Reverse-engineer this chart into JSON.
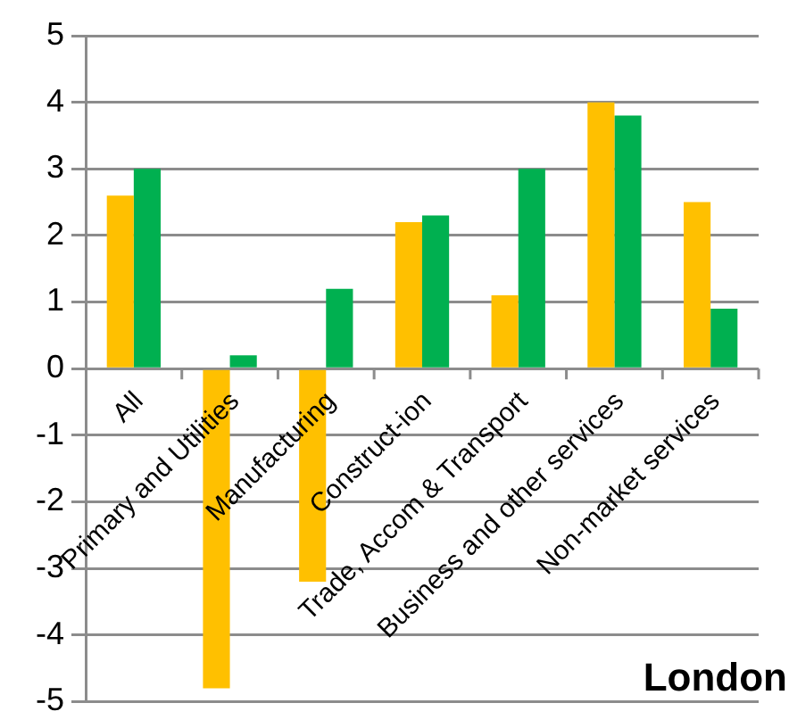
{
  "chart_data": {
    "type": "bar",
    "title": "London",
    "categories": [
      "All",
      "Primary and Utilities",
      "Manufacturing",
      "Construct-ion",
      "Trade, Accom & Transport",
      "Business and other services",
      "Non-market services"
    ],
    "series": [
      {
        "color": "#ffc000",
        "values": [
          2.6,
          -4.8,
          -3.2,
          2.2,
          1.1,
          4.0,
          2.5
        ]
      },
      {
        "color": "#00b050",
        "values": [
          3.0,
          0.2,
          1.2,
          2.3,
          3.0,
          3.8,
          0.9
        ]
      }
    ],
    "ylim": [
      -5,
      5
    ],
    "yticks": [
      -5,
      -4,
      -3,
      -2,
      -1,
      0,
      1,
      2,
      3,
      4,
      5
    ],
    "grid": "y"
  }
}
